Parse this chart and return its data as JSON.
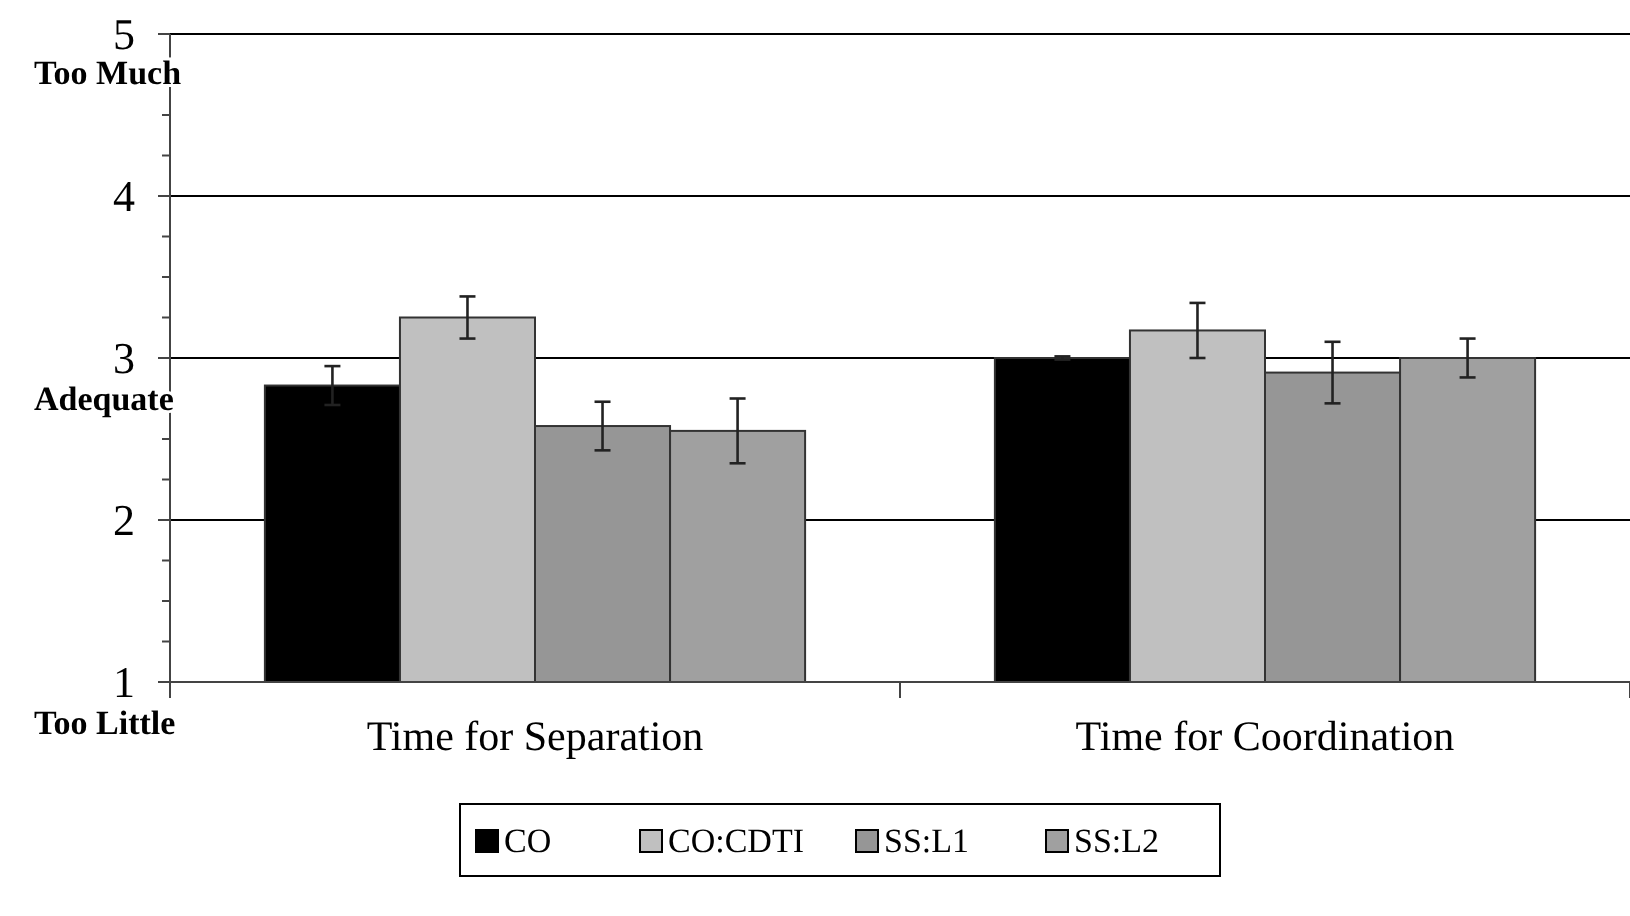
{
  "chart_data": {
    "type": "bar",
    "categories": [
      "Time for Separation",
      "Time for Coordination"
    ],
    "series": [
      {
        "name": "CO",
        "color": "#000000",
        "values": [
          2.83,
          3.0
        ],
        "errors": [
          0.12,
          0.01
        ]
      },
      {
        "name": "CO:CDTI",
        "color": "#c0c0c0",
        "values": [
          3.25,
          3.17
        ],
        "errors": [
          0.13,
          0.17
        ]
      },
      {
        "name": "SS:L1",
        "color": "#969696",
        "values": [
          2.58,
          2.91
        ],
        "errors": [
          0.15,
          0.19
        ]
      },
      {
        "name": "SS:L2",
        "color": "#a0a0a0",
        "values": [
          2.55,
          3.0
        ],
        "errors": [
          0.2,
          0.12
        ]
      }
    ],
    "ylim": [
      1,
      5
    ],
    "yticks": [
      1,
      {
        "value": 1.25,
        "label": null
      },
      {
        "value": 1.5,
        "label": null
      },
      {
        "value": 1.75,
        "label": null
      },
      2,
      {
        "value": 2.25,
        "label": null
      },
      {
        "value": 2.5,
        "label": null
      },
      {
        "value": 2.75,
        "label": null
      },
      3,
      {
        "value": 3.25,
        "label": null
      },
      {
        "value": 3.5,
        "label": null
      },
      {
        "value": 3.75,
        "label": null
      },
      4,
      {
        "value": 4.25,
        "label": null
      },
      {
        "value": 4.5,
        "label": null
      },
      {
        "value": 4.75,
        "label": null
      },
      5
    ],
    "grid": "y",
    "legend": "bottom",
    "annotations": [
      "Too Much",
      "Adequate",
      "Too Little"
    ]
  }
}
